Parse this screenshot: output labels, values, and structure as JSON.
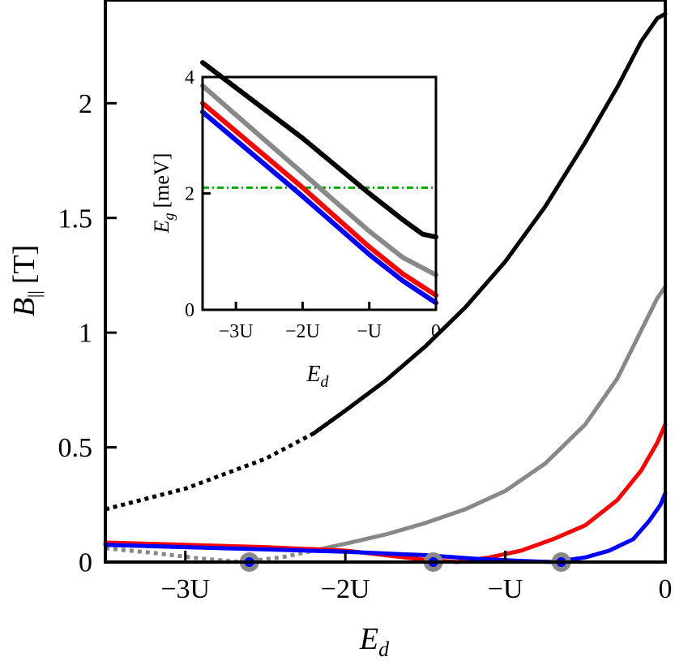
{
  "chart_data": [
    {
      "id": "main",
      "type": "line",
      "xlabel": "E",
      "xlabel_sub": "d",
      "ylabel": "B",
      "ylabel_sub": "||",
      "ylabel_unit": "[T]",
      "xlim": [
        -3.5,
        0
      ],
      "ylim": [
        0,
        2.45
      ],
      "xticks": [
        {
          "value": -3,
          "label": "−3U"
        },
        {
          "value": -2,
          "label": "−2U"
        },
        {
          "value": -1,
          "label": "−U"
        },
        {
          "value": 0,
          "label": "0"
        }
      ],
      "yticks": [
        {
          "value": 0,
          "label": "0"
        },
        {
          "value": 0.5,
          "label": "0.5"
        },
        {
          "value": 1,
          "label": "1"
        },
        {
          "value": 1.5,
          "label": "1.5"
        },
        {
          "value": 2,
          "label": "2"
        }
      ],
      "series": [
        {
          "name": "black",
          "color": "#000000",
          "points": [
            [
              -3.5,
              0.23
            ],
            [
              -3.0,
              0.32
            ],
            [
              -2.5,
              0.45
            ],
            [
              -2.2,
              0.56
            ],
            [
              -2.0,
              0.66
            ],
            [
              -1.75,
              0.79
            ],
            [
              -1.5,
              0.94
            ],
            [
              -1.25,
              1.11
            ],
            [
              -1.0,
              1.31
            ],
            [
              -0.75,
              1.55
            ],
            [
              -0.5,
              1.83
            ],
            [
              -0.3,
              2.07
            ],
            [
              -0.15,
              2.27
            ],
            [
              -0.05,
              2.37
            ],
            [
              0.0,
              2.39
            ]
          ],
          "dotted_until": -2.0
        },
        {
          "name": "gray",
          "color": "#888888",
          "points": [
            [
              -3.5,
              0.06
            ],
            [
              -3.2,
              0.04
            ],
            [
              -2.9,
              0.015
            ],
            [
              -2.65,
              0.0
            ],
            [
              -2.4,
              0.02
            ],
            [
              -2.2,
              0.05
            ],
            [
              -2.0,
              0.08
            ],
            [
              -1.75,
              0.12
            ],
            [
              -1.5,
              0.17
            ],
            [
              -1.25,
              0.23
            ],
            [
              -1.0,
              0.31
            ],
            [
              -0.75,
              0.43
            ],
            [
              -0.5,
              0.6
            ],
            [
              -0.3,
              0.8
            ],
            [
              -0.15,
              1.01
            ],
            [
              -0.05,
              1.15
            ],
            [
              0.0,
              1.2
            ]
          ],
          "dotted_until": -2.1
        },
        {
          "name": "red",
          "color": "#ff0000",
          "points": [
            [
              -3.5,
              0.085
            ],
            [
              -3.0,
              0.075
            ],
            [
              -2.5,
              0.065
            ],
            [
              -2.0,
              0.05
            ],
            [
              -1.75,
              0.03
            ],
            [
              -1.5,
              0.01
            ],
            [
              -1.3,
              0.0
            ],
            [
              -1.1,
              0.02
            ],
            [
              -0.9,
              0.05
            ],
            [
              -0.7,
              0.1
            ],
            [
              -0.5,
              0.16
            ],
            [
              -0.3,
              0.27
            ],
            [
              -0.15,
              0.4
            ],
            [
              -0.05,
              0.52
            ],
            [
              0.0,
              0.6
            ]
          ],
          "dotted_until": -3.0
        },
        {
          "name": "blue",
          "color": "#0000ff",
          "points": [
            [
              -3.5,
              0.075
            ],
            [
              -3.0,
              0.065
            ],
            [
              -2.5,
              0.055
            ],
            [
              -2.0,
              0.045
            ],
            [
              -1.5,
              0.03
            ],
            [
              -1.2,
              0.015
            ],
            [
              -0.9,
              0.005
            ],
            [
              -0.7,
              0.0
            ],
            [
              -0.5,
              0.02
            ],
            [
              -0.35,
              0.05
            ],
            [
              -0.2,
              0.1
            ],
            [
              -0.1,
              0.18
            ],
            [
              -0.03,
              0.25
            ],
            [
              0.0,
              0.3
            ]
          ],
          "dotted_until": -3.0
        }
      ],
      "markers": [
        {
          "x": -2.6,
          "y": 0
        },
        {
          "x": -1.45,
          "y": 0
        },
        {
          "x": -0.65,
          "y": 0
        }
      ]
    },
    {
      "id": "inset",
      "type": "line",
      "xlabel": "E",
      "xlabel_sub": "d",
      "ylabel": "E",
      "ylabel_sub": "g",
      "ylabel_unit": "[meV]",
      "xlim": [
        -3.5,
        0
      ],
      "ylim": [
        0,
        4
      ],
      "xticks": [
        {
          "value": -3,
          "label": "−3U"
        },
        {
          "value": -2,
          "label": "−2U"
        },
        {
          "value": -1,
          "label": "−U"
        },
        {
          "value": 0,
          "label": "0"
        }
      ],
      "yticks": [
        {
          "value": 0,
          "label": "0"
        },
        {
          "value": 2,
          "label": "2"
        },
        {
          "value": 4,
          "label": "4"
        }
      ],
      "hline": {
        "y": 2.1,
        "color": "#00aa00"
      },
      "series": [
        {
          "name": "black",
          "color": "#000000",
          "points": [
            [
              -3.5,
              4.25
            ],
            [
              -2.0,
              2.95
            ],
            [
              -1.0,
              2.0
            ],
            [
              -0.5,
              1.55
            ],
            [
              -0.2,
              1.3
            ],
            [
              0.0,
              1.25
            ]
          ],
          "dotted_until": -2.0
        },
        {
          "name": "gray",
          "color": "#888888",
          "points": [
            [
              -3.5,
              3.85
            ],
            [
              -2.0,
              2.35
            ],
            [
              -1.0,
              1.35
            ],
            [
              -0.5,
              0.9
            ],
            [
              0.0,
              0.6
            ]
          ],
          "dotted_until": -2.05
        },
        {
          "name": "red",
          "color": "#ff0000",
          "points": [
            [
              -3.5,
              3.55
            ],
            [
              -2.0,
              2.1
            ],
            [
              -1.0,
              1.08
            ],
            [
              -0.5,
              0.62
            ],
            [
              0.0,
              0.25
            ]
          ],
          "dotted_until": -3.05
        },
        {
          "name": "blue",
          "color": "#0000ff",
          "points": [
            [
              -3.5,
              3.4
            ],
            [
              -2.0,
              1.95
            ],
            [
              -1.0,
              0.95
            ],
            [
              -0.5,
              0.5
            ],
            [
              0.0,
              0.12
            ]
          ],
          "dotted_until": -3.05
        }
      ]
    }
  ]
}
